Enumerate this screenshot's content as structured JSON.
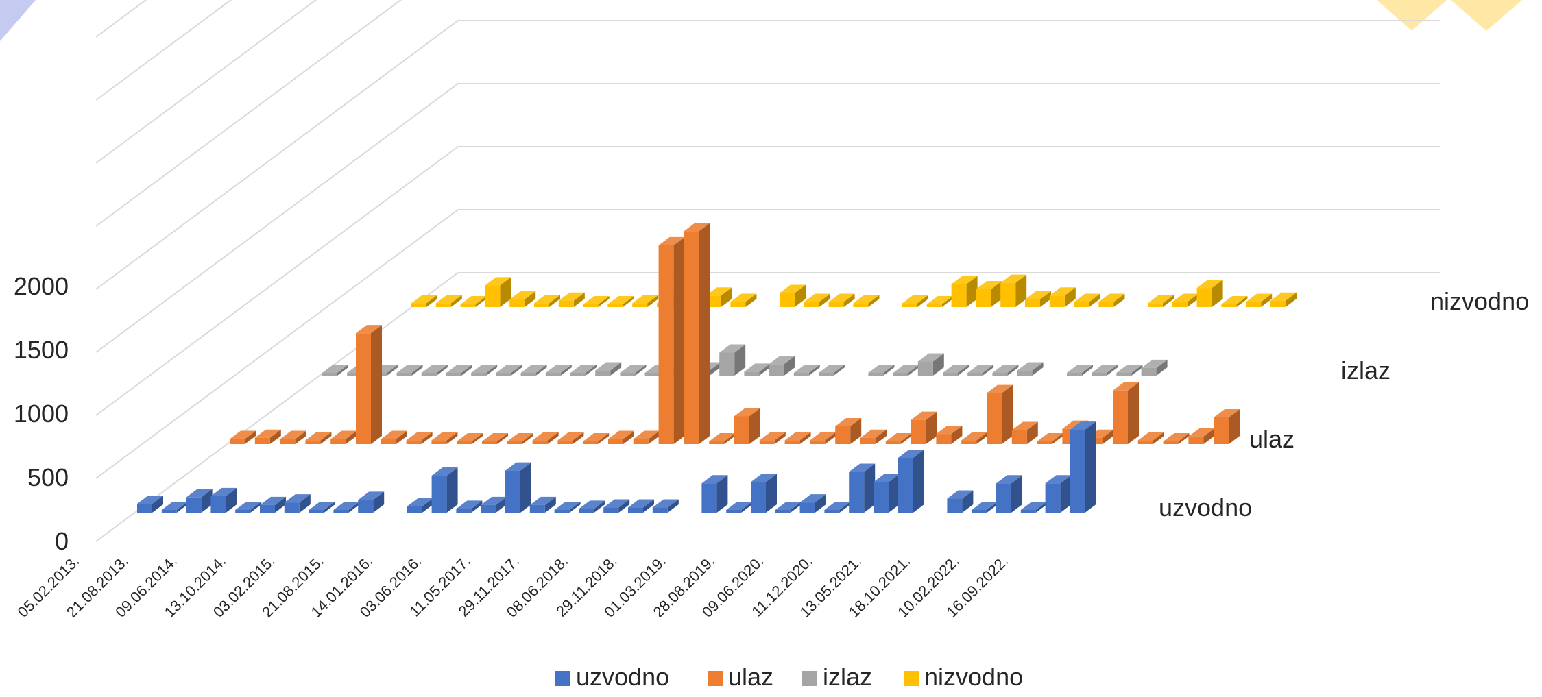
{
  "colors": {
    "uzvodno": "#4472C4",
    "ulaz": "#ED7D31",
    "izlaz": "#A5A5A5",
    "nizvodno": "#FFC000",
    "gridline": "#D9D9D9",
    "text": "#262626"
  },
  "chart_data": {
    "type": "bar",
    "variant": "3d-column",
    "title": "",
    "xlabel": "",
    "ylabel": "",
    "ylim": [
      0,
      2000
    ],
    "yticks": [
      0,
      500,
      1000,
      1500,
      2000
    ],
    "grid": true,
    "legend_position": "bottom",
    "x_tick_labels": [
      "05.02.2013.",
      "21.08.2013.",
      "09.06.2014.",
      "13.10.2014.",
      "03.02.2015.",
      "21.08.2015.",
      "14.01.2016.",
      "03.06.2016.",
      "11.05.2017.",
      "29.11.2017.",
      "08.06.2018.",
      "29.11.2018.",
      "01.03.2019.",
      "28.08.2019.",
      "09.06.2020.",
      "11.12.2020.",
      "13.05.2021.",
      "18.10.2021.",
      "10.02.2022.",
      "16.09.2022."
    ],
    "depth_labels": [
      "uzvodno",
      "ulaz",
      "izlaz",
      "nizvodno"
    ],
    "series": [
      {
        "name": "uzvodno",
        "values": [
          70,
          20,
          120,
          130,
          20,
          60,
          80,
          10,
          20,
          100,
          null,
          50,
          290,
          30,
          60,
          330,
          60,
          20,
          30,
          40,
          40,
          40,
          null,
          230,
          20,
          240,
          20,
          80,
          10,
          320,
          240,
          430,
          null,
          110,
          20,
          230,
          20,
          230,
          650
        ]
      },
      {
        "name": "ulaz",
        "values": [
          40,
          50,
          40,
          30,
          40,
          870,
          40,
          30,
          30,
          20,
          20,
          20,
          30,
          30,
          20,
          40,
          40,
          1560,
          1670,
          20,
          220,
          30,
          30,
          30,
          140,
          50,
          20,
          190,
          80,
          30,
          400,
          110,
          10,
          120,
          50,
          420,
          30,
          10,
          60,
          210
        ]
      },
      {
        "name": "izlaz",
        "values": [
          20,
          20,
          20,
          20,
          20,
          20,
          20,
          20,
          20,
          20,
          20,
          40,
          20,
          20,
          20,
          40,
          180,
          30,
          90,
          20,
          20,
          null,
          20,
          20,
          110,
          20,
          20,
          20,
          40,
          null,
          20,
          20,
          20,
          60
        ]
      },
      {
        "name": "nizvodno",
        "values": [
          30,
          30,
          20,
          170,
          60,
          30,
          50,
          20,
          20,
          30,
          30,
          40,
          90,
          40,
          null,
          110,
          40,
          40,
          30,
          null,
          30,
          20,
          180,
          140,
          190,
          60,
          90,
          40,
          40,
          null,
          30,
          40,
          150,
          20,
          40,
          50
        ]
      }
    ]
  },
  "legend": [
    {
      "label": "uzvodno",
      "color": "#4472C4"
    },
    {
      "label": "ulaz",
      "color": "#ED7D31"
    },
    {
      "label": "izlaz",
      "color": "#A5A5A5"
    },
    {
      "label": "nizvodno",
      "color": "#FFC000"
    }
  ]
}
